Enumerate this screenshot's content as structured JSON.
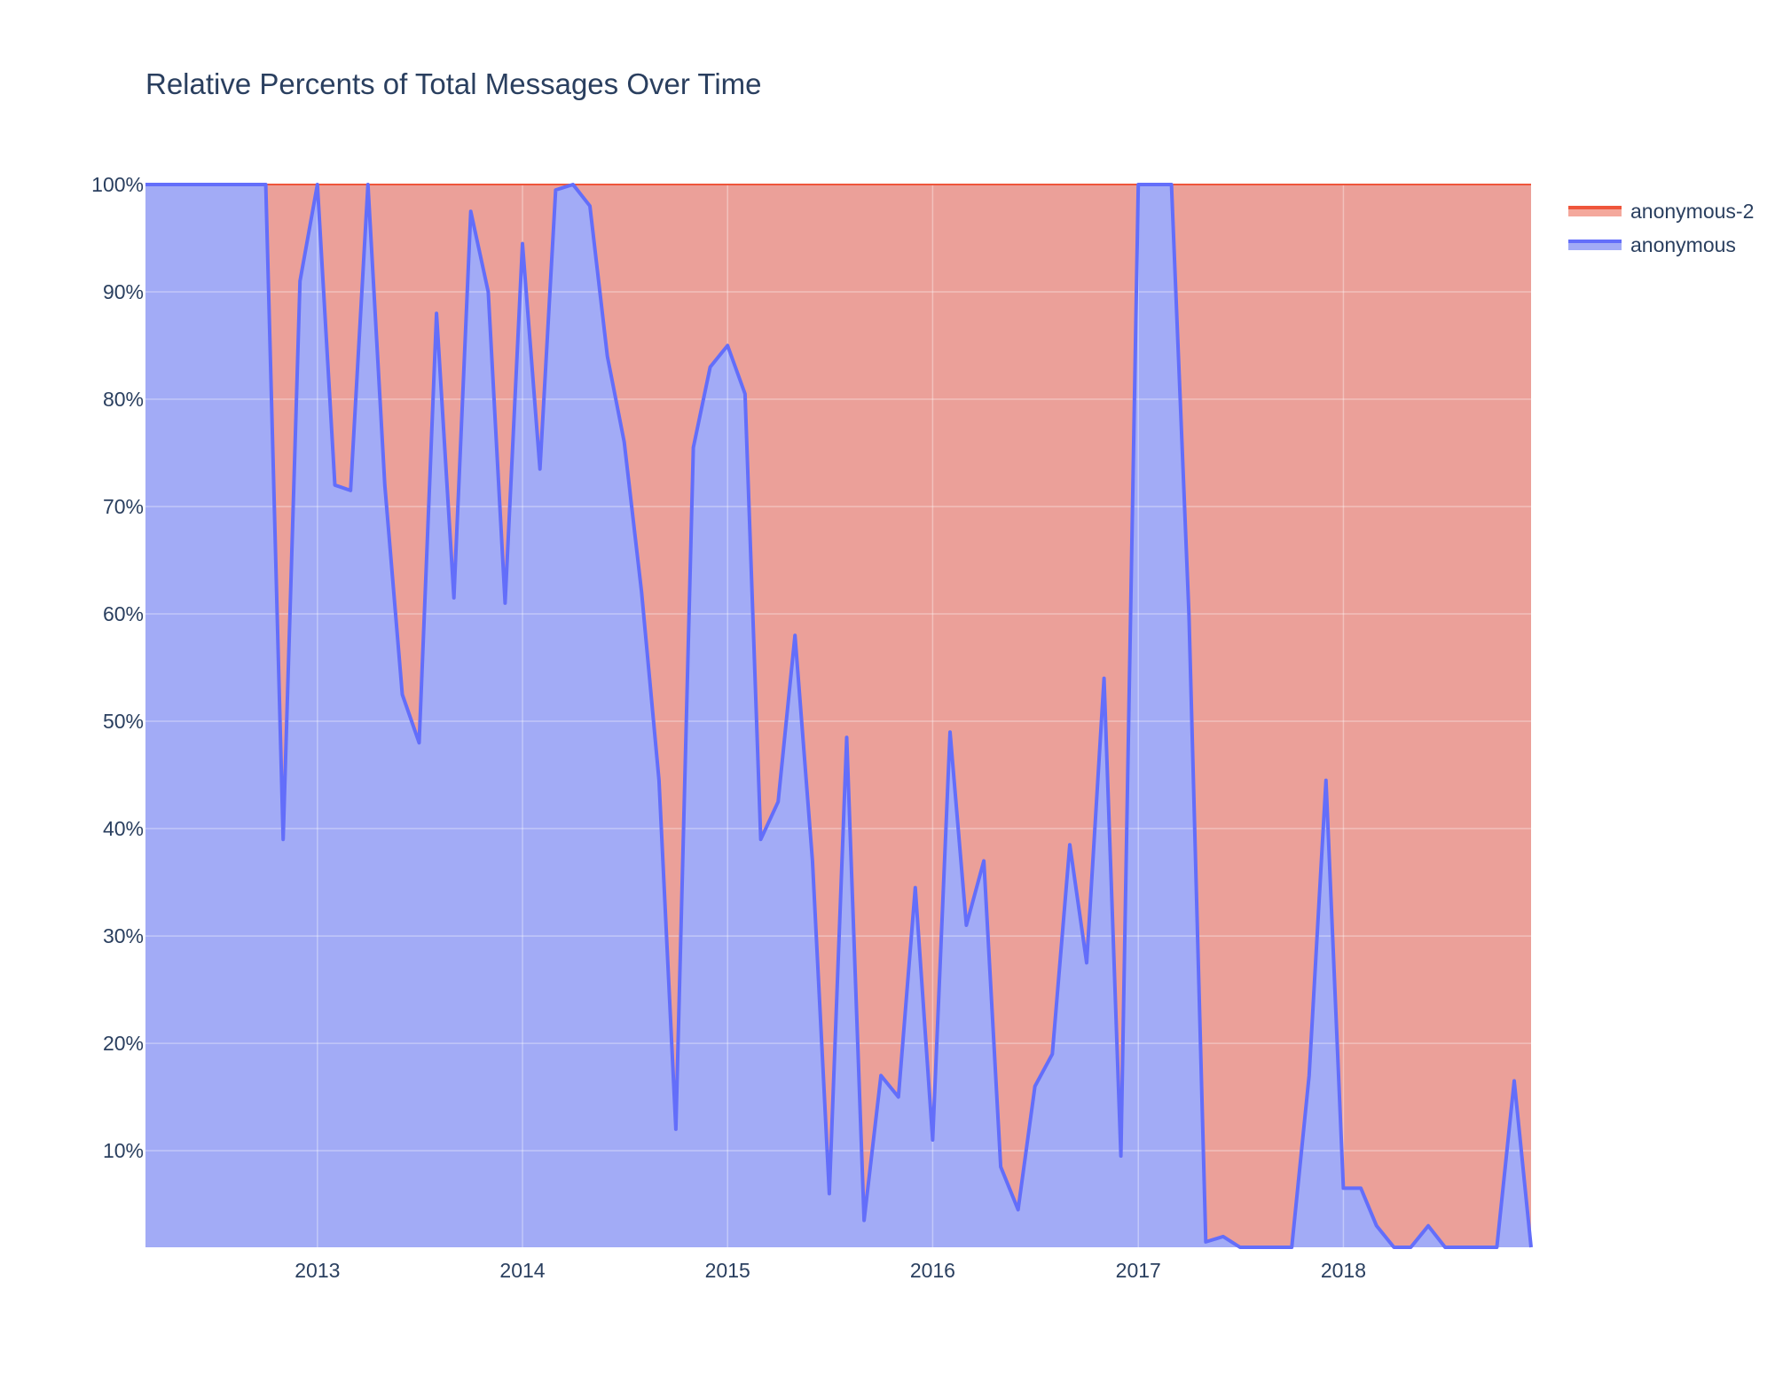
{
  "chart_data": {
    "type": "area",
    "title": "Relative Percents of Total Messages Over Time",
    "xlabel": "",
    "ylabel": "",
    "stacking": "percent",
    "x_range": [
      "2012-03-01",
      "2018-12-01"
    ],
    "x_ticks": [
      {
        "label": "2013",
        "value": "2013-01-01"
      },
      {
        "label": "2014",
        "value": "2014-01-01"
      },
      {
        "label": "2015",
        "value": "2015-01-01"
      },
      {
        "label": "2016",
        "value": "2016-01-01"
      },
      {
        "label": "2017",
        "value": "2017-01-01"
      },
      {
        "label": "2018",
        "value": "2018-01-01"
      }
    ],
    "y_range": [
      1,
      100
    ],
    "y_ticks": [
      {
        "label": "10%",
        "value": 10
      },
      {
        "label": "20%",
        "value": 20
      },
      {
        "label": "30%",
        "value": 30
      },
      {
        "label": "40%",
        "value": 40
      },
      {
        "label": "50%",
        "value": 50
      },
      {
        "label": "60%",
        "value": 60
      },
      {
        "label": "70%",
        "value": 70
      },
      {
        "label": "80%",
        "value": 80
      },
      {
        "label": "90%",
        "value": 90
      },
      {
        "label": "100%",
        "value": 100
      }
    ],
    "grid": true,
    "legend_position": "top-right",
    "series": [
      {
        "name": "anonymous",
        "line_color": "#636efa",
        "fill_color": "#a2abf6",
        "x": [
          "2012-03-01",
          "2012-04-01",
          "2012-05-01",
          "2012-06-01",
          "2012-07-01",
          "2012-08-01",
          "2012-09-01",
          "2012-10-01",
          "2012-11-01",
          "2012-12-01",
          "2013-01-01",
          "2013-02-01",
          "2013-03-01",
          "2013-04-01",
          "2013-05-01",
          "2013-06-01",
          "2013-07-01",
          "2013-08-01",
          "2013-09-01",
          "2013-10-01",
          "2013-11-01",
          "2013-12-01",
          "2014-01-01",
          "2014-02-01",
          "2014-03-01",
          "2014-04-01",
          "2014-05-01",
          "2014-06-01",
          "2014-07-01",
          "2014-08-01",
          "2014-09-01",
          "2014-10-01",
          "2014-11-01",
          "2014-12-01",
          "2015-01-01",
          "2015-02-01",
          "2015-03-01",
          "2015-04-01",
          "2015-05-01",
          "2015-06-01",
          "2015-07-01",
          "2015-08-01",
          "2015-09-01",
          "2015-10-01",
          "2015-11-01",
          "2015-12-01",
          "2016-01-01",
          "2016-02-01",
          "2016-03-01",
          "2016-04-01",
          "2016-05-01",
          "2016-06-01",
          "2016-07-01",
          "2016-08-01",
          "2016-09-01",
          "2016-10-01",
          "2016-11-01",
          "2016-12-01",
          "2017-01-01",
          "2017-02-01",
          "2017-03-01",
          "2017-04-01",
          "2017-05-01",
          "2017-06-01",
          "2017-07-01",
          "2017-08-01",
          "2017-09-01",
          "2017-10-01",
          "2017-11-01",
          "2017-12-01",
          "2018-01-01",
          "2018-02-01",
          "2018-03-01",
          "2018-04-01",
          "2018-05-01",
          "2018-06-01",
          "2018-07-01",
          "2018-08-01",
          "2018-09-01",
          "2018-10-01",
          "2018-11-01",
          "2018-12-01"
        ],
        "values": [
          100,
          100,
          100,
          100,
          100,
          100,
          100,
          100,
          39,
          91,
          100,
          72,
          71.5,
          100,
          72,
          52.5,
          48,
          88,
          61.5,
          97.5,
          90,
          61,
          94.5,
          73.5,
          99.5,
          100,
          98,
          84,
          76,
          62,
          44.5,
          12,
          75.5,
          83,
          85,
          80.5,
          39,
          42.5,
          58,
          37,
          6,
          48.5,
          3.5,
          17,
          15,
          34.5,
          11,
          49,
          31,
          37,
          8.5,
          4.5,
          16,
          19,
          38.5,
          27.5,
          54,
          9.5,
          100,
          100,
          100,
          60,
          1.5,
          2,
          0,
          0,
          0,
          0,
          17,
          44.5,
          6.5,
          6.5,
          3,
          0,
          0,
          3,
          0,
          0,
          0,
          0,
          16.5,
          1
        ]
      },
      {
        "name": "anonymous-2",
        "line_color": "#ef553b",
        "fill_color": "#eba099",
        "note_values": "complement to 100%"
      }
    ]
  }
}
